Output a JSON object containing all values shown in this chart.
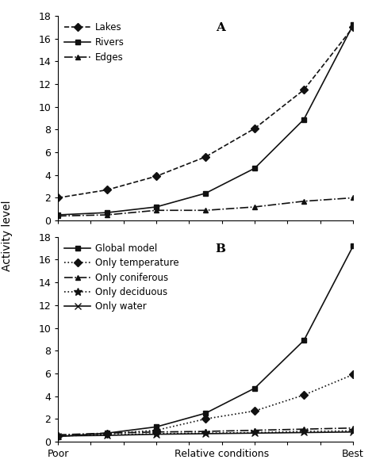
{
  "panel_A": {
    "label": "A",
    "series": [
      {
        "name": "Lakes",
        "y": [
          2.0,
          2.7,
          3.9,
          5.6,
          8.1,
          11.5,
          17.0
        ],
        "linestyle": "--",
        "marker": "D",
        "color": "#111111"
      },
      {
        "name": "Rivers",
        "y": [
          0.5,
          0.7,
          1.2,
          2.4,
          4.6,
          8.9,
          17.2
        ],
        "linestyle": "-",
        "marker": "s",
        "color": "#111111"
      },
      {
        "name": "Edges",
        "y": [
          0.4,
          0.5,
          0.9,
          0.9,
          1.2,
          1.7,
          2.0
        ],
        "linestyle": "-.",
        "marker": "^",
        "color": "#111111"
      }
    ],
    "ylim": [
      0,
      18
    ],
    "yticks": [
      0,
      2,
      4,
      6,
      8,
      10,
      12,
      14,
      16,
      18
    ]
  },
  "panel_B": {
    "label": "B",
    "series": [
      {
        "name": "Global model",
        "y": [
          0.45,
          0.75,
          1.3,
          2.5,
          4.7,
          8.9,
          17.2
        ],
        "linestyle": "-",
        "marker": "s",
        "color": "#111111"
      },
      {
        "name": "Only temperature",
        "y": [
          0.5,
          0.7,
          1.0,
          2.0,
          2.7,
          4.1,
          5.9
        ],
        "linestyle": ":",
        "marker": "D",
        "color": "#111111"
      },
      {
        "name": "Only coniferous",
        "y": [
          0.6,
          0.75,
          0.85,
          0.9,
          1.0,
          1.1,
          1.2
        ],
        "linestyle": "-.",
        "marker": "^",
        "color": "#111111"
      },
      {
        "name": "Only deciduous",
        "y": [
          0.5,
          0.6,
          0.7,
          0.75,
          0.8,
          0.9,
          0.95
        ],
        "linestyle": ":",
        "marker": "*",
        "color": "#111111"
      },
      {
        "name": "Only water",
        "y": [
          0.5,
          0.55,
          0.65,
          0.7,
          0.75,
          0.8,
          0.85
        ],
        "linestyle": "-",
        "marker": "x",
        "color": "#111111"
      }
    ],
    "ylim": [
      0,
      18
    ],
    "yticks": [
      0,
      2,
      4,
      6,
      8,
      10,
      12,
      14,
      16,
      18
    ]
  },
  "x_tick_positions": [
    0,
    2.5,
    5
  ],
  "x_tick_labels_bottom": [
    "Poor",
    "Relative conditions",
    "Best"
  ],
  "ylabel": "Activity level",
  "background_color": "#ffffff",
  "n_points": 7
}
